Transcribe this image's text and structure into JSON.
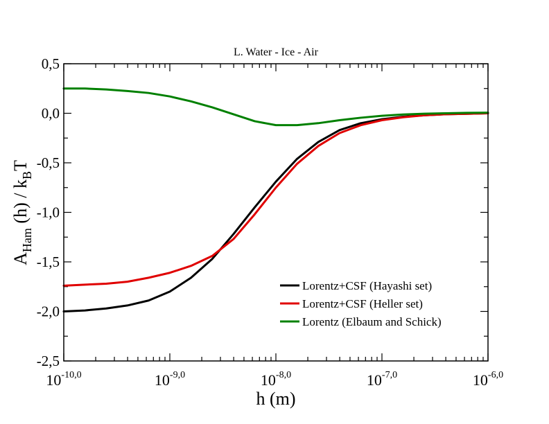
{
  "chart_data": {
    "type": "line",
    "title": "L. Water - Ice - Air",
    "xlabel": "h (m)",
    "ylabel": {
      "base": "A",
      "sub1": "Ham",
      "mid": " (h) / k",
      "sub2": "B",
      "end": "T"
    },
    "xscale": "log",
    "xlim_exponent": [
      -10.0,
      -6.0
    ],
    "ylim": [
      -2.5,
      0.5
    ],
    "x_ticks": [
      {
        "base": "10",
        "exp": "-10,0"
      },
      {
        "base": "10",
        "exp": "-9,0"
      },
      {
        "base": "10",
        "exp": "-8,0"
      },
      {
        "base": "10",
        "exp": "-7,0"
      },
      {
        "base": "10",
        "exp": "-6,0"
      }
    ],
    "y_ticks": [
      "0,5",
      "0,0",
      "-0,5",
      "-1,0",
      "-1,5",
      "-2,0",
      "-2,5"
    ],
    "y_tick_values": [
      0.5,
      0.0,
      -0.5,
      -1.0,
      -1.5,
      -2.0,
      -2.5
    ],
    "legend_position": "bottom-right",
    "series": [
      {
        "name": "Lorentz+CSF (Hayashi set)",
        "color": "#000000",
        "log10_x": [
          -10.0,
          -9.8,
          -9.6,
          -9.4,
          -9.2,
          -9.0,
          -8.8,
          -8.6,
          -8.4,
          -8.2,
          -8.0,
          -7.8,
          -7.6,
          -7.4,
          -7.2,
          -7.0,
          -6.8,
          -6.6,
          -6.4,
          -6.2,
          -6.0
        ],
        "y": [
          -2.0,
          -1.99,
          -1.97,
          -1.94,
          -1.89,
          -1.8,
          -1.66,
          -1.47,
          -1.22,
          -0.95,
          -0.69,
          -0.46,
          -0.29,
          -0.17,
          -0.1,
          -0.06,
          -0.035,
          -0.02,
          -0.01,
          -0.005,
          0.0
        ]
      },
      {
        "name": "Lorentz+CSF (Heller set)",
        "color": "#e00000",
        "log10_x": [
          -10.0,
          -9.8,
          -9.6,
          -9.4,
          -9.2,
          -9.0,
          -8.8,
          -8.6,
          -8.4,
          -8.2,
          -8.0,
          -7.8,
          -7.6,
          -7.4,
          -7.2,
          -7.0,
          -6.8,
          -6.6,
          -6.4,
          -6.2,
          -6.0
        ],
        "y": [
          -1.74,
          -1.73,
          -1.72,
          -1.7,
          -1.66,
          -1.61,
          -1.54,
          -1.44,
          -1.27,
          -1.02,
          -0.75,
          -0.51,
          -0.33,
          -0.2,
          -0.12,
          -0.07,
          -0.04,
          -0.02,
          -0.01,
          -0.005,
          0.0
        ]
      },
      {
        "name": "Lorentz (Elbaum and Schick)",
        "color": "#008000",
        "log10_x": [
          -10.0,
          -9.8,
          -9.6,
          -9.4,
          -9.2,
          -9.0,
          -8.8,
          -8.6,
          -8.4,
          -8.2,
          -8.0,
          -7.8,
          -7.6,
          -7.4,
          -7.2,
          -7.0,
          -6.8,
          -6.6,
          -6.4,
          -6.2,
          -6.0
        ],
        "y": [
          0.25,
          0.25,
          0.24,
          0.225,
          0.205,
          0.17,
          0.12,
          0.06,
          -0.01,
          -0.08,
          -0.12,
          -0.12,
          -0.1,
          -0.07,
          -0.045,
          -0.025,
          -0.012,
          -0.004,
          0.0,
          0.004,
          0.006
        ]
      }
    ]
  }
}
